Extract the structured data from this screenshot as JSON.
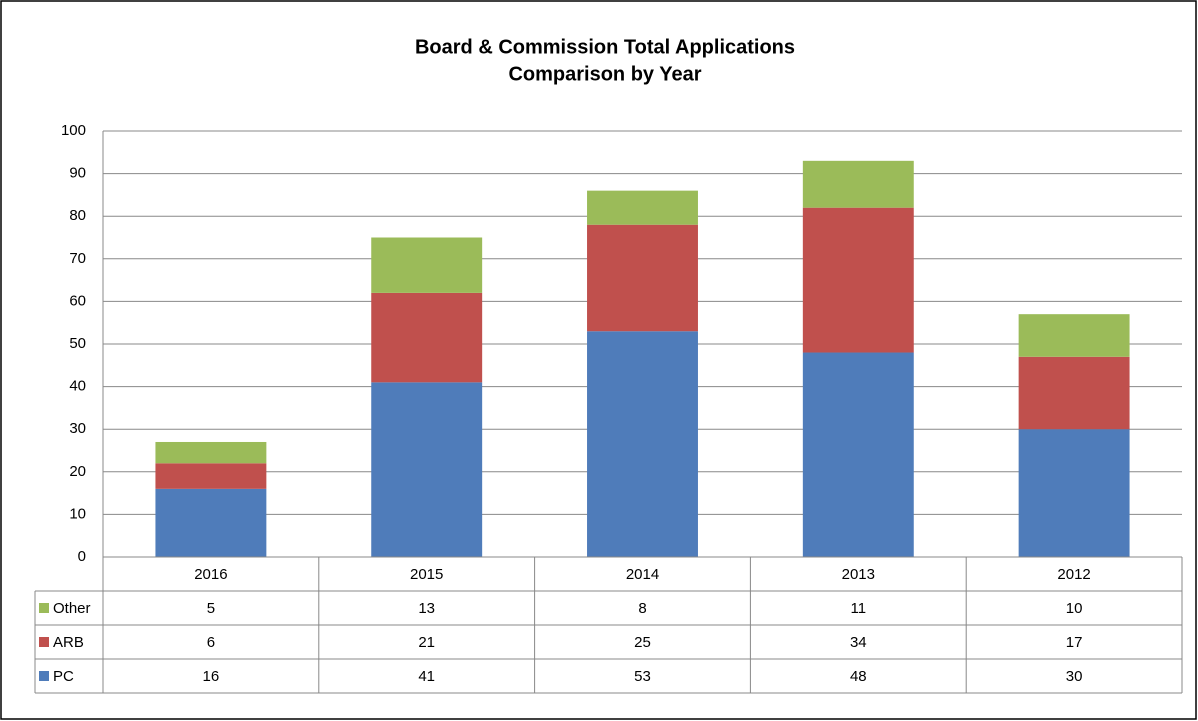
{
  "chart_data": {
    "type": "bar",
    "stacked": true,
    "title": [
      "Board & Commission  Total Applications",
      "Comparison by Year"
    ],
    "categories": [
      "2016",
      "2015",
      "2014",
      "2013",
      "2012"
    ],
    "series": [
      {
        "name": "PC",
        "color": "#4f7cba",
        "values": [
          16,
          41,
          53,
          48,
          30
        ]
      },
      {
        "name": "ARB",
        "color": "#c0504d",
        "values": [
          6,
          21,
          25,
          34,
          17
        ]
      },
      {
        "name": "Other",
        "color": "#9bbb59",
        "values": [
          5,
          13,
          8,
          11,
          10
        ]
      }
    ],
    "ylim": [
      0,
      100
    ],
    "yticks": [
      0,
      10,
      20,
      30,
      40,
      50,
      60,
      70,
      80,
      90,
      100
    ],
    "grid": true,
    "data_table": true
  }
}
